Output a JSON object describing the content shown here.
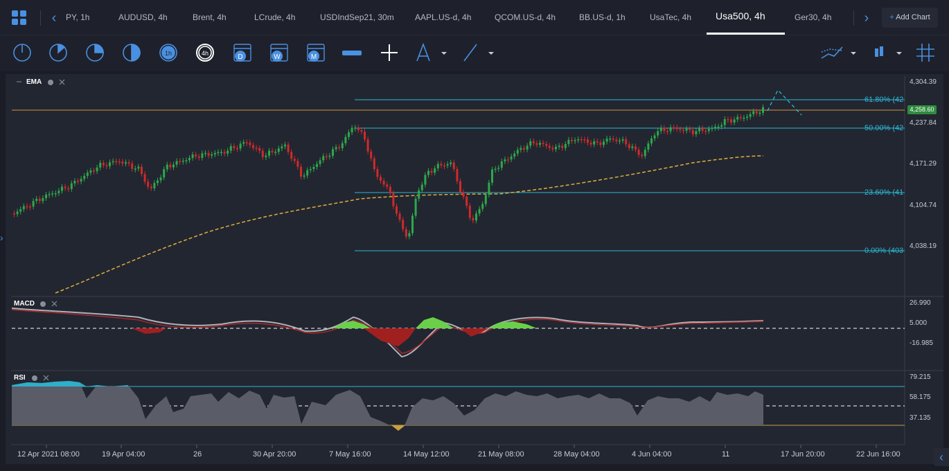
{
  "tabs": [
    {
      "label": "PY, 1h"
    },
    {
      "label": "AUDUSD, 4h"
    },
    {
      "label": "Brent, 4h"
    },
    {
      "label": "LCrude, 4h"
    },
    {
      "label": "USDIndSep21, 30m"
    },
    {
      "label": "AAPL.US-d, 4h"
    },
    {
      "label": "QCOM.US-d, 4h"
    },
    {
      "label": "BB.US-d, 1h"
    },
    {
      "label": "UsaTec, 4h"
    },
    {
      "label": "Usa500, 4h"
    },
    {
      "label": "Ger30, 4h"
    }
  ],
  "active_tab": "Usa500, 4h",
  "add_chart": {
    "plus": "+",
    "label": "Add Chart"
  },
  "toolbar": {
    "timeframes": [
      "1m",
      "5m",
      "15m",
      "30m",
      "1h",
      "4h"
    ],
    "periods": [
      "D",
      "W",
      "M"
    ],
    "icons": [
      "clock-1m-icon",
      "clock-5m-icon",
      "clock-15m-icon",
      "clock-30m-icon",
      "clock-1h-icon",
      "clock-4h-icon",
      "calendar-day-icon",
      "calendar-week-icon",
      "calendar-month-icon",
      "ruler-icon",
      "crosshair-icon",
      "compass-icon",
      "line-draw-icon",
      "indicators-icon",
      "candle-type-icon",
      "grid-icon"
    ]
  },
  "main_pane": {
    "indicator": "EMA",
    "y_labels": [
      "4,304.39",
      "4,237.84",
      "4,171.29",
      "4,104.74",
      "4,038.19"
    ],
    "price_tag": "4,258.60",
    "fib_levels": [
      {
        "label": "61.80% (42"
      },
      {
        "label": "50.00% (42"
      },
      {
        "label": "23.60% (41"
      },
      {
        "label": "0.00% (403"
      }
    ]
  },
  "macd_pane": {
    "indicator": "MACD",
    "y_labels": [
      "26.990",
      "5.000",
      "-16.985"
    ]
  },
  "rsi_pane": {
    "indicator": "RSI",
    "y_labels": [
      "79.215",
      "58.175",
      "37.135"
    ]
  },
  "x_labels": [
    "12 Apr 2021 08:00",
    "19 Apr 04:00",
    "26",
    "30 Apr 20:00",
    "7 May 16:00",
    "14 May 12:00",
    "21 May 08:00",
    "28 May 04:00",
    "4 Jun 04:00",
    "11",
    "17 Jun 20:00",
    "22 Jun 16:00"
  ],
  "colors": {
    "accent": "#4a90e2",
    "up": "#2ea84a",
    "down": "#d02a2a",
    "fib": "#2ab8d4",
    "ema": "#e0b03a",
    "hline": "#b07f3a"
  }
}
